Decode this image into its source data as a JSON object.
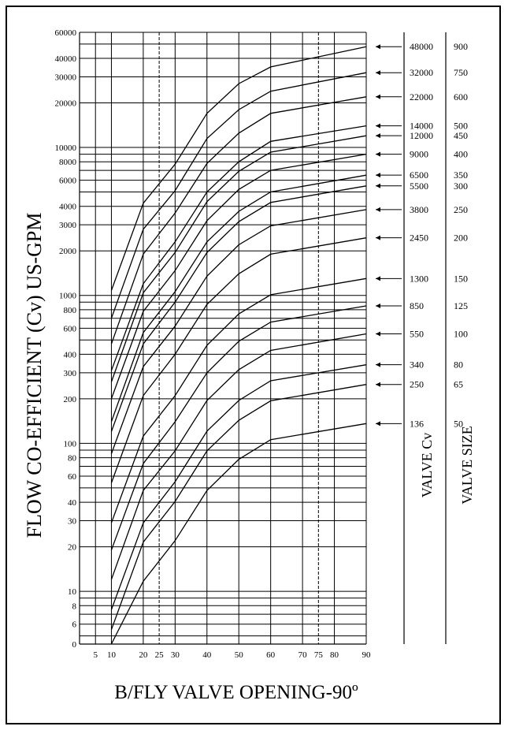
{
  "chart_data": {
    "type": "line",
    "xlabel": "B/FLY  VALVE OPENING-90º",
    "ylabel": "FLOW CO-EFFICIENT (Cv) US-GPM",
    "right_col1_label": "VALVE Cv",
    "right_col2_label": "VALVE SIZE",
    "y_scale": "log",
    "x_ticks": [
      5,
      10,
      20,
      25,
      30,
      40,
      50,
      60,
      70,
      75,
      80,
      90
    ],
    "y_ticks": [
      {
        "value": 0,
        "label": "0"
      },
      {
        "value": 6,
        "label": "6"
      },
      {
        "value": 8,
        "label": "8"
      },
      {
        "value": 10,
        "label": "10"
      },
      {
        "value": 20,
        "label": "20"
      },
      {
        "value": 30,
        "label": "30"
      },
      {
        "value": 40,
        "label": "40"
      },
      {
        "value": 60,
        "label": "60"
      },
      {
        "value": 80,
        "label": "80"
      },
      {
        "value": 100,
        "label": "100"
      },
      {
        "value": 200,
        "label": "200"
      },
      {
        "value": 300,
        "label": "300"
      },
      {
        "value": 400,
        "label": "400"
      },
      {
        "value": 600,
        "label": "600"
      },
      {
        "value": 800,
        "label": "800"
      },
      {
        "value": 1000,
        "label": "1000"
      },
      {
        "value": 2000,
        "label": "2000"
      },
      {
        "value": 3000,
        "label": "3000"
      },
      {
        "value": 4000,
        "label": "4000"
      },
      {
        "value": 6000,
        "label": "6000"
      },
      {
        "value": 8000,
        "label": "8000"
      },
      {
        "value": 10000,
        "label": "10000"
      },
      {
        "value": 20000,
        "label": "20000"
      },
      {
        "value": 30000,
        "label": "30000"
      },
      {
        "value": 40000,
        "label": "40000"
      },
      {
        "value": 60000,
        "label": "60000"
      }
    ],
    "series": [
      {
        "cv": "48000",
        "size": "900",
        "values": [
          1080,
          4200,
          7700,
          17000,
          27000,
          35000,
          48000
        ]
      },
      {
        "cv": "32000",
        "size": "750",
        "values": [
          700,
          2800,
          5100,
          11500,
          18000,
          24000,
          32000
        ]
      },
      {
        "cv": "22000",
        "size": "600",
        "values": [
          470,
          1900,
          3600,
          7800,
          12500,
          17000,
          22000
        ]
      },
      {
        "cv": "14000",
        "size": "500",
        "values": [
          310,
          1200,
          2300,
          5000,
          8000,
          11000,
          14000
        ]
      },
      {
        "cv": "12000",
        "size": "450",
        "values": [
          260,
          1040,
          1950,
          4300,
          6900,
          9300,
          12000
        ]
      },
      {
        "cv": "9000",
        "size": "400",
        "values": [
          200,
          780,
          1470,
          3200,
          5200,
          7000,
          9000
        ]
      },
      {
        "cv": "6500",
        "size": "350",
        "values": [
          140,
          560,
          1060,
          2300,
          3700,
          5000,
          6500
        ]
      },
      {
        "cv": "5500",
        "size": "300",
        "values": [
          120,
          470,
          900,
          1950,
          3150,
          4250,
          5500
        ]
      },
      {
        "cv": "3800",
        "size": "250",
        "values": [
          85,
          330,
          620,
          1350,
          2200,
          2950,
          3800
        ]
      },
      {
        "cv": "2450",
        "size": "200",
        "values": [
          54,
          210,
          400,
          870,
          1400,
          1900,
          2450
        ]
      },
      {
        "cv": "1300",
        "size": "150",
        "values": [
          29,
          112,
          210,
          460,
          750,
          1010,
          1300
        ]
      },
      {
        "cv": "850",
        "size": "125",
        "values": [
          19,
          73,
          140,
          300,
          490,
          660,
          850
        ]
      },
      {
        "cv": "550",
        "size": "100",
        "values": [
          12,
          48,
          89,
          195,
          315,
          425,
          550
        ]
      },
      {
        "cv": "340",
        "size": "80",
        "values": [
          7.5,
          29,
          55,
          121,
          195,
          265,
          340
        ]
      },
      {
        "cv": "250",
        "size": "65",
        "values": [
          5.5,
          21.5,
          40.5,
          89,
          143,
          194,
          250
        ]
      },
      {
        "cv": "136",
        "size": "50",
        "values": [
          0,
          11.7,
          22,
          48,
          78,
          106,
          136
        ]
      }
    ],
    "x": [
      10,
      20,
      30,
      40,
      50,
      60,
      90
    ]
  }
}
